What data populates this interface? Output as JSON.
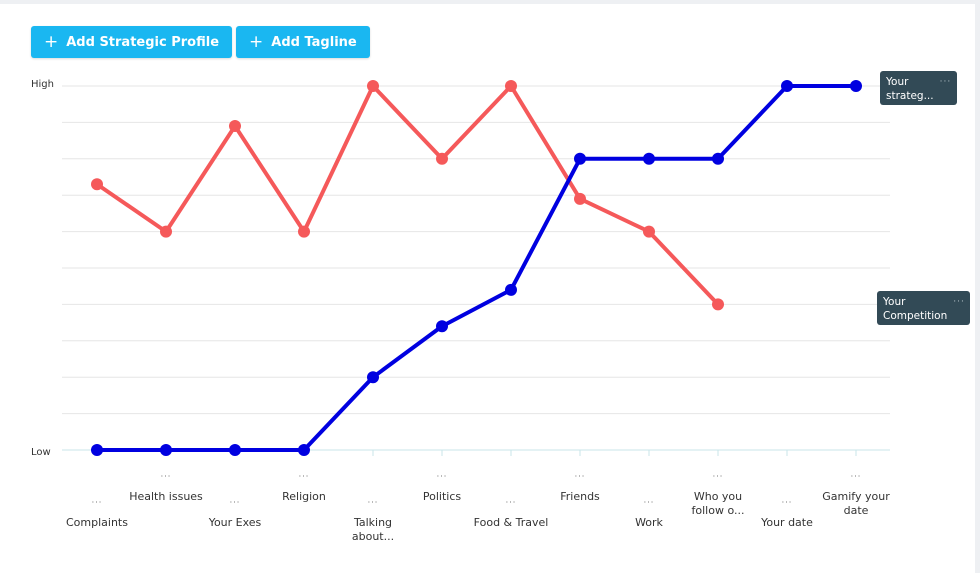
{
  "toolbar": {
    "add_profile_label": "Add Strategic Profile",
    "add_tagline_label": "Add Tagline",
    "plus_glyph": "+"
  },
  "dots": "···",
  "series_tags": {
    "strategic_label": "Your strateg...",
    "competition_label": "Your Competition"
  },
  "chart_data": {
    "type": "line",
    "categories": [
      "Complaints",
      "Health issues",
      "Your Exes",
      "Religion",
      "Talking about...",
      "Politics",
      "Food & Travel",
      "Friends",
      "Work",
      "Who you follow o...",
      "Your date",
      "Gamify your date"
    ],
    "y_tick_labels": [
      "Low",
      "High"
    ],
    "ylim": [
      0,
      10
    ],
    "grid": true,
    "series": [
      {
        "name": "Your strateg...",
        "color": "#0000e0",
        "values": [
          0,
          0,
          0,
          0,
          2,
          3.4,
          4.4,
          8,
          8,
          8,
          10,
          10
        ]
      },
      {
        "name": "Your Competition",
        "color": "#f5595a",
        "values": [
          7.3,
          6,
          8.9,
          6,
          10,
          8,
          10,
          6.9,
          6,
          4,
          null,
          null
        ]
      }
    ]
  }
}
